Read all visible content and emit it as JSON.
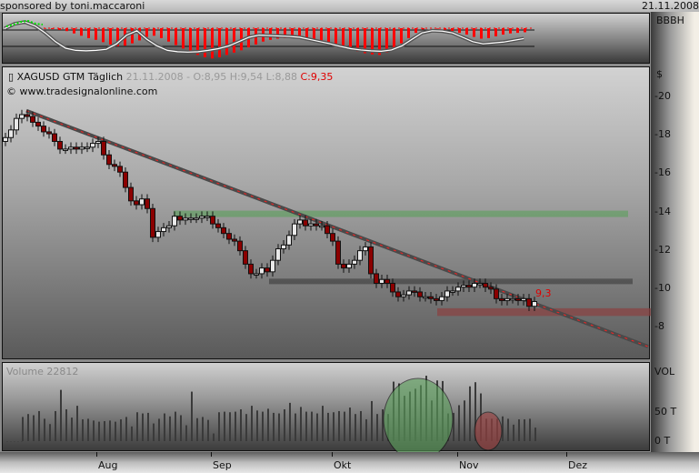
{
  "header": {
    "sponsor": "sponsored by toni.maccaroni",
    "date": "21.11.2008"
  },
  "oscillator": {
    "label": "BBBH",
    "histogram": [
      -2,
      -3,
      -6,
      -10,
      -18,
      -26,
      -34,
      -40,
      -48,
      -56,
      -62,
      -60,
      -52,
      -42,
      -30,
      -26,
      -34,
      -46,
      -58,
      -70,
      -82,
      -92,
      -100,
      -104,
      -100,
      -92,
      -84,
      -76,
      -66,
      -56,
      -46,
      -40,
      -36,
      -34,
      -32,
      -32,
      -34,
      -38,
      -44,
      -52,
      -60,
      -68,
      -74,
      -80,
      -86,
      -90,
      -92,
      -84,
      -70,
      -52,
      -34,
      -16,
      -4,
      0,
      -2,
      -6,
      -10,
      -16,
      -22,
      -30,
      -36,
      -34,
      -28,
      -22,
      -18,
      -16,
      -14
    ],
    "line": [
      40,
      62,
      70,
      52,
      20,
      -20,
      -50,
      -60,
      -62,
      -60,
      -55,
      -30,
      10,
      30,
      -10,
      -40,
      -60,
      -66,
      -68,
      -66,
      -60,
      -52,
      -40,
      -20,
      0,
      10,
      8,
      6,
      4,
      0,
      -10,
      -20,
      -30,
      -42,
      -52,
      -58,
      -62,
      -64,
      -58,
      -40,
      -10,
      20,
      30,
      28,
      20,
      0,
      -20,
      -30,
      -26,
      -22,
      -14,
      -6
    ],
    "colors": {
      "histogram": "#ff0000",
      "line": "#ffffff",
      "signal": "#00e000"
    }
  },
  "chart": {
    "symbol": "XAGUSD GTM Täglich",
    "info": "21.11.2008 - O:8,95 H:9,54 L:8,88",
    "close": "C:9,35",
    "site": "© www.tradesignalonline.com",
    "last_label": "9,3",
    "currency": "$",
    "price_ticks": [
      "20",
      "18",
      "16",
      "14",
      "12",
      "10",
      "8"
    ],
    "closes": [
      17.9,
      18.3,
      18.9,
      19.1,
      19.0,
      18.7,
      18.5,
      18.2,
      18.1,
      17.7,
      17.3,
      17.3,
      17.4,
      17.3,
      17.4,
      17.4,
      17.6,
      17.7,
      17.0,
      16.5,
      16.4,
      16.1,
      15.3,
      14.6,
      14.4,
      14.7,
      14.2,
      12.7,
      13.0,
      13.2,
      13.3,
      13.8,
      13.6,
      13.7,
      13.7,
      13.7,
      13.8,
      13.8,
      13.4,
      13.2,
      12.9,
      12.6,
      12.5,
      12.0,
      11.3,
      10.8,
      10.8,
      11.1,
      10.9,
      11.5,
      12.1,
      12.3,
      12.8,
      13.4,
      13.6,
      13.3,
      13.4,
      13.3,
      13.3,
      12.9,
      12.5,
      11.3,
      11.1,
      11.3,
      11.5,
      12.0,
      12.2,
      10.8,
      10.3,
      10.5,
      10.3,
      9.85,
      9.6,
      9.7,
      9.9,
      9.85,
      9.6,
      9.6,
      9.5,
      9.4,
      9.6,
      9.9,
      9.9,
      10.1,
      10.2,
      10.1,
      10.3,
      10.3,
      10.1,
      10.0,
      9.5,
      9.4,
      9.5,
      9.5,
      9.4,
      9.5,
      9.1,
      9.35
    ],
    "levels": {
      "resistance_green": 13.9,
      "support_gray": 10.4,
      "zone_red": [
        8.6,
        9.0
      ]
    },
    "trendline": {
      "from": 19.3,
      "to": 7.0
    },
    "colors": {
      "up": "#e8e8e8",
      "down": "#8b0000",
      "green": "#5aa05a",
      "red_zone": "#8a4040"
    }
  },
  "volume": {
    "label": "Volume 22812",
    "axis_label": "VOL",
    "ticks": [
      "50 T",
      "0 T"
    ],
    "values": [
      41,
      46,
      44,
      51,
      38,
      29,
      51,
      87,
      54,
      40,
      60,
      37,
      38,
      35,
      33,
      34,
      35,
      33,
      37,
      41,
      25,
      49,
      47,
      48,
      30,
      38,
      47,
      42,
      50,
      44,
      27,
      84,
      39,
      41,
      36,
      13,
      49,
      50,
      49,
      50,
      54,
      46,
      60,
      52,
      50,
      55,
      48,
      47,
      54,
      65,
      47,
      58,
      50,
      50,
      47,
      60,
      48,
      49,
      51,
      50,
      57,
      46,
      51,
      37,
      68,
      46,
      54,
      46,
      101,
      98,
      77,
      84,
      89,
      95,
      111,
      69,
      103,
      102,
      47,
      48,
      61,
      69,
      93,
      100,
      81,
      38,
      38,
      38,
      42,
      38,
      28,
      37,
      37,
      38,
      23
    ]
  },
  "time_axis": [
    "Aug",
    "Sep",
    "Okt",
    "Nov",
    "Dez"
  ]
}
